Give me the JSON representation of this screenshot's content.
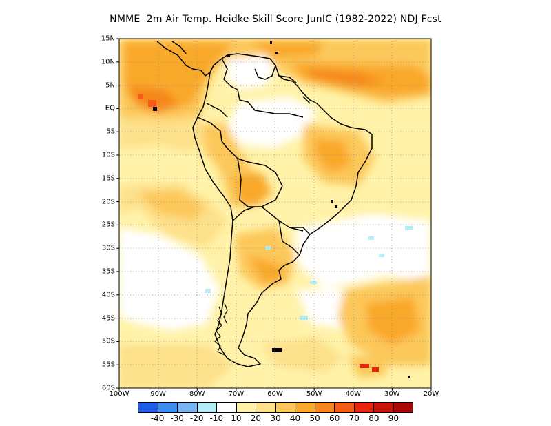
{
  "title": "NMME  2m Air Temp. Heidke Skill Score JunIC (1982-2022) NDJ Fcst",
  "map": {
    "lon_range": [
      -100,
      -20
    ],
    "lat_range": [
      -60,
      15
    ],
    "lat_ticks": [
      {
        "value": 15,
        "label": "15N"
      },
      {
        "value": 10,
        "label": "10N"
      },
      {
        "value": 5,
        "label": "5N"
      },
      {
        "value": 0,
        "label": "EQ"
      },
      {
        "value": -5,
        "label": "5S"
      },
      {
        "value": -10,
        "label": "10S"
      },
      {
        "value": -15,
        "label": "15S"
      },
      {
        "value": -20,
        "label": "20S"
      },
      {
        "value": -25,
        "label": "25S"
      },
      {
        "value": -30,
        "label": "30S"
      },
      {
        "value": -35,
        "label": "35S"
      },
      {
        "value": -40,
        "label": "40S"
      },
      {
        "value": -45,
        "label": "45S"
      },
      {
        "value": -50,
        "label": "50S"
      },
      {
        "value": -55,
        "label": "55S"
      },
      {
        "value": -60,
        "label": "60S"
      }
    ],
    "lon_ticks": [
      {
        "value": -100,
        "label": "100W"
      },
      {
        "value": -90,
        "label": "90W"
      },
      {
        "value": -80,
        "label": "80W"
      },
      {
        "value": -70,
        "label": "70W"
      },
      {
        "value": -60,
        "label": "60W"
      },
      {
        "value": -50,
        "label": "50W"
      },
      {
        "value": -40,
        "label": "40W"
      },
      {
        "value": -30,
        "label": "30W"
      },
      {
        "value": -20,
        "label": "20W"
      }
    ]
  },
  "colorbar": {
    "colors": [
      "#1e5ee6",
      "#3b8ef0",
      "#78b4f4",
      "#b4ecf6",
      "#ffffff",
      "#fff2a8",
      "#fde08a",
      "#fcc85a",
      "#f9a92a",
      "#f6871e",
      "#f25c14",
      "#e8260e",
      "#c8140a",
      "#a80806"
    ],
    "labels": [
      "-40",
      "-30",
      "-20",
      "-10",
      "10",
      "20",
      "30",
      "40",
      "50",
      "60",
      "70",
      "80",
      "90"
    ]
  }
}
